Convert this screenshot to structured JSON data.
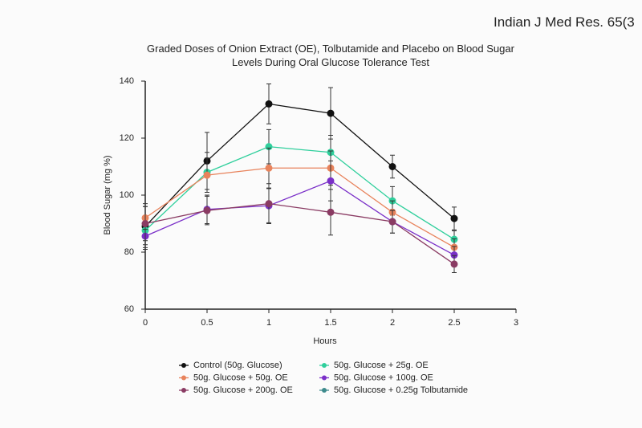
{
  "source": "Indian J Med Res. 65(3",
  "chart_data": {
    "type": "line",
    "title": "Graded Doses of Onion Extract (OE), Tolbutamide and Placebo on Blood Sugar Levels During Oral Glucose Tolerance Test",
    "x_label": "Hours",
    "y_label": "Blood Sugar (mg %)",
    "x": [
      0,
      0.5,
      1,
      1.5,
      2,
      2.5
    ],
    "xlim": [
      0,
      3
    ],
    "xticks": [
      0,
      0.5,
      1,
      1.5,
      2,
      2.5,
      3
    ],
    "ylim": [
      60,
      140
    ],
    "yticks": [
      60,
      80,
      100,
      120,
      140
    ],
    "series": [
      {
        "name": "Control (50g. Glucose)",
        "color": "#111111",
        "values": [
          89,
          112,
          132,
          128.7,
          110,
          91.8
        ],
        "errors": [
          8,
          10,
          7,
          9,
          4,
          4
        ]
      },
      {
        "name": "50g. Glucose + 25g. OE",
        "color": "#2fcf9c",
        "values": [
          87.6,
          108,
          117,
          115,
          98,
          84.5
        ],
        "errors": [
          5,
          7,
          6,
          6,
          5,
          3
        ]
      },
      {
        "name": "50g. Glucose + 50g. OE",
        "color": "#e8835c",
        "values": [
          92,
          107,
          109.5,
          109.5,
          94,
          81.7
        ],
        "errors": [
          4,
          6,
          7,
          6,
          4,
          3
        ]
      },
      {
        "name": "50g. Glucose + 100g. OE",
        "color": "#7a2fc8",
        "values": [
          85.6,
          95,
          96.3,
          105,
          90.7,
          79
        ],
        "errors": [
          4,
          5,
          6,
          7,
          4,
          3
        ]
      },
      {
        "name": "50g. Glucose + 200g. OE",
        "color": "#8a3b63",
        "values": [
          90,
          94.6,
          97,
          94,
          90.7,
          75.8
        ],
        "errors": [
          6,
          5,
          7,
          8,
          4,
          3
        ]
      },
      {
        "name": "50g. Glucose + 0.25g Tolbutamide",
        "color": "#3d8a8c",
        "values": [
          null,
          null,
          null,
          null,
          null,
          null
        ],
        "errors": [
          null,
          null,
          null,
          null,
          null,
          null
        ]
      }
    ]
  }
}
